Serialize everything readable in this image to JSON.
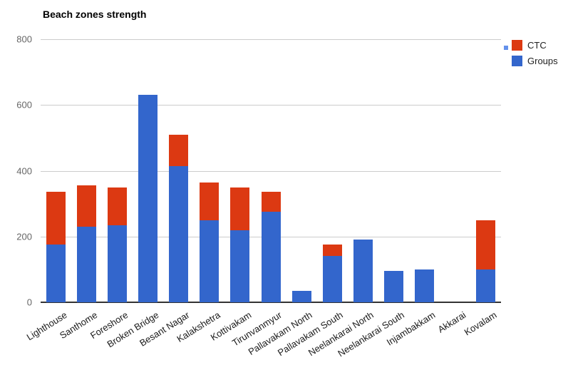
{
  "title": "Beach zones strength",
  "chart_data": {
    "type": "bar",
    "stacked": true,
    "orientation": "vertical",
    "title": "Beach zones strength",
    "xlabel": "",
    "ylabel": "",
    "ylim": [
      0,
      800
    ],
    "yticks": [
      0,
      200,
      400,
      600,
      800
    ],
    "grid": true,
    "legend_position": "top-right",
    "categories": [
      "Lighthouse",
      "Santhome",
      "Foreshore",
      "Broken Bridge",
      "Besant Nagar",
      "Kalakshetra",
      "Kottivakam",
      "Tirunvanmyur",
      "Pallavakam North",
      "Pallavakam South",
      "Neelankarai North",
      "Neelankarai South",
      "Injambakkam",
      "Akkarai",
      "Kovalam"
    ],
    "series": [
      {
        "name": "Groups",
        "color": "#3366cc",
        "values": [
          175,
          230,
          235,
          630,
          415,
          250,
          220,
          275,
          35,
          140,
          190,
          95,
          100,
          0,
          100
        ]
      },
      {
        "name": "CTC",
        "color": "#dc3912",
        "values": [
          160,
          125,
          115,
          0,
          95,
          115,
          130,
          60,
          0,
          35,
          0,
          0,
          0,
          0,
          150
        ]
      }
    ]
  },
  "legend": {
    "items": [
      {
        "label": "CTC",
        "color": "#dc3912"
      },
      {
        "label": "Groups",
        "color": "#3366cc"
      }
    ],
    "indicator_color": "#6491eb"
  },
  "colors": {
    "background": "#ffffff",
    "gridline": "#cccccc",
    "axis": "#333333",
    "ytick_text": "#666666",
    "xtick_text": "#1a1a1a",
    "title_text": "#000000"
  }
}
